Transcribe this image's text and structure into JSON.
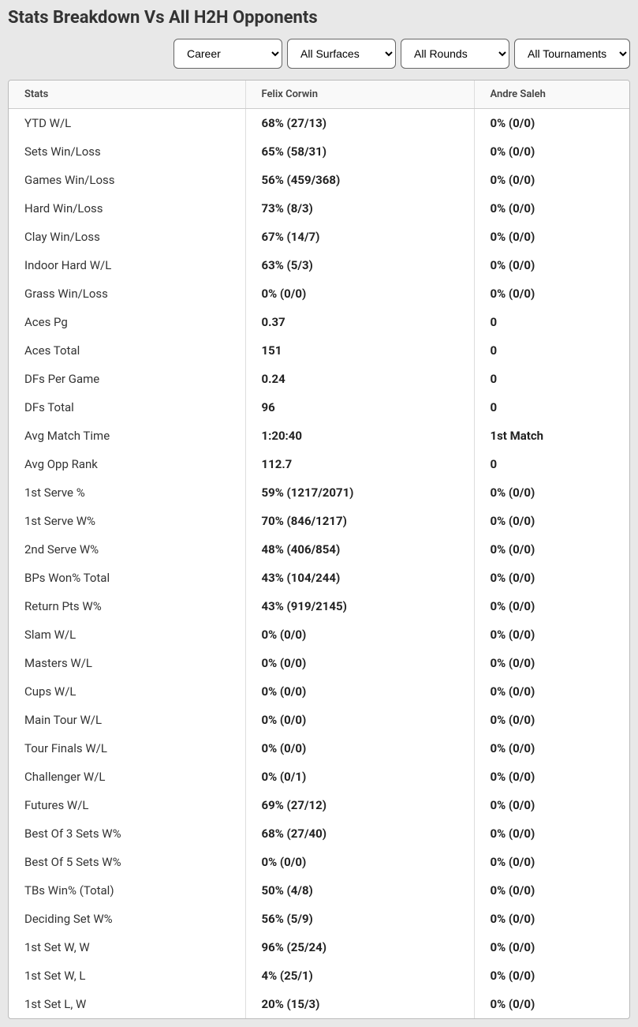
{
  "title": "Stats Breakdown Vs All H2H Opponents",
  "filters": {
    "period": {
      "selected": "Career",
      "options": [
        "Career"
      ]
    },
    "surface": {
      "selected": "All Surfaces",
      "options": [
        "All Surfaces"
      ]
    },
    "round": {
      "selected": "All Rounds",
      "options": [
        "All Rounds"
      ]
    },
    "tournament": {
      "selected": "All Tournaments",
      "options": [
        "All Tournaments"
      ]
    }
  },
  "columns": {
    "stats": "Stats",
    "player1": "Felix Corwin",
    "player2": "Andre Saleh"
  },
  "rows": [
    {
      "label": "YTD W/L",
      "p1": "68% (27/13)",
      "p2": "0% (0/0)"
    },
    {
      "label": "Sets Win/Loss",
      "p1": "65% (58/31)",
      "p2": "0% (0/0)"
    },
    {
      "label": "Games Win/Loss",
      "p1": "56% (459/368)",
      "p2": "0% (0/0)"
    },
    {
      "label": "Hard Win/Loss",
      "p1": "73% (8/3)",
      "p2": "0% (0/0)"
    },
    {
      "label": "Clay Win/Loss",
      "p1": "67% (14/7)",
      "p2": "0% (0/0)"
    },
    {
      "label": "Indoor Hard W/L",
      "p1": "63% (5/3)",
      "p2": "0% (0/0)"
    },
    {
      "label": "Grass Win/Loss",
      "p1": "0% (0/0)",
      "p2": "0% (0/0)"
    },
    {
      "label": "Aces Pg",
      "p1": "0.37",
      "p2": "0"
    },
    {
      "label": "Aces Total",
      "p1": "151",
      "p2": "0"
    },
    {
      "label": "DFs Per Game",
      "p1": "0.24",
      "p2": "0"
    },
    {
      "label": "DFs Total",
      "p1": "96",
      "p2": "0"
    },
    {
      "label": "Avg Match Time",
      "p1": "1:20:40",
      "p2": "1st Match"
    },
    {
      "label": "Avg Opp Rank",
      "p1": "112.7",
      "p2": "0"
    },
    {
      "label": "1st Serve %",
      "p1": "59% (1217/2071)",
      "p2": "0% (0/0)"
    },
    {
      "label": "1st Serve W%",
      "p1": "70% (846/1217)",
      "p2": "0% (0/0)"
    },
    {
      "label": "2nd Serve W%",
      "p1": "48% (406/854)",
      "p2": "0% (0/0)"
    },
    {
      "label": "BPs Won% Total",
      "p1": "43% (104/244)",
      "p2": "0% (0/0)"
    },
    {
      "label": "Return Pts W%",
      "p1": "43% (919/2145)",
      "p2": "0% (0/0)"
    },
    {
      "label": "Slam W/L",
      "p1": "0% (0/0)",
      "p2": "0% (0/0)"
    },
    {
      "label": "Masters W/L",
      "p1": "0% (0/0)",
      "p2": "0% (0/0)"
    },
    {
      "label": "Cups W/L",
      "p1": "0% (0/0)",
      "p2": "0% (0/0)"
    },
    {
      "label": "Main Tour W/L",
      "p1": "0% (0/0)",
      "p2": "0% (0/0)"
    },
    {
      "label": "Tour Finals W/L",
      "p1": "0% (0/0)",
      "p2": "0% (0/0)"
    },
    {
      "label": "Challenger W/L",
      "p1": "0% (0/1)",
      "p2": "0% (0/0)"
    },
    {
      "label": "Futures W/L",
      "p1": "69% (27/12)",
      "p2": "0% (0/0)"
    },
    {
      "label": "Best Of 3 Sets W%",
      "p1": "68% (27/40)",
      "p2": "0% (0/0)"
    },
    {
      "label": "Best Of 5 Sets W%",
      "p1": "0% (0/0)",
      "p2": "0% (0/0)"
    },
    {
      "label": "TBs Win% (Total)",
      "p1": "50% (4/8)",
      "p2": "0% (0/0)"
    },
    {
      "label": "Deciding Set W%",
      "p1": "56% (5/9)",
      "p2": "0% (0/0)"
    },
    {
      "label": "1st Set W, W",
      "p1": "96% (25/24)",
      "p2": "0% (0/0)"
    },
    {
      "label": "1st Set W, L",
      "p1": "4% (25/1)",
      "p2": "0% (0/0)"
    },
    {
      "label": "1st Set L, W",
      "p1": "20% (15/3)",
      "p2": "0% (0/0)"
    }
  ]
}
